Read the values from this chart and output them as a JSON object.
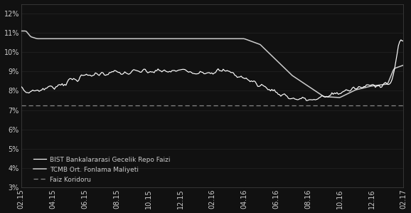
{
  "background_color": "#111111",
  "text_color": "#cccccc",
  "grid_color": "#2a2a2a",
  "line_bist_color": "#ffffff",
  "line_tcmb_color": "#cccccc",
  "line_faiz_color": "#888888",
  "ylim": [
    3,
    12.5
  ],
  "yticks": [
    3,
    4,
    5,
    6,
    7,
    8,
    9,
    10,
    11,
    12
  ],
  "xtick_labels": [
    "02.15",
    "04.15",
    "06.15",
    "08.15",
    "10.15",
    "12.15",
    "02.16",
    "04.16",
    "06.16",
    "08.16",
    "10.16",
    "12.16",
    "02.17"
  ],
  "legend": [
    "BIST Bankalararasi Gecelik Repo Faizi",
    "TCMB Ort. Fonlama Maliyeti",
    "Faiz Koridoru"
  ],
  "faiz_koridoru_value": 7.25
}
